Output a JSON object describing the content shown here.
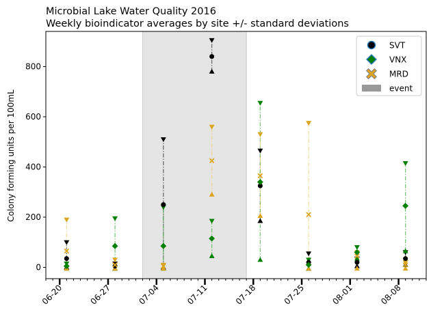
{
  "chart_data": {
    "type": "scatter",
    "title": "Microbial Lake Water Quality 2016",
    "subtitle": "Weekly bioindicator averages by site +/- standard deviations",
    "xlabel": "",
    "ylabel": "Colony forming units per 100mL",
    "xlim": [
      "2016-06-18",
      "2016-08-12"
    ],
    "ylim": [
      -45,
      940
    ],
    "x_ticks": [
      "06-20",
      "06-27",
      "07-04",
      "07-11",
      "07-18",
      "07-25",
      "08-01",
      "08-08"
    ],
    "x_tick_dates": [
      "2016-06-20",
      "2016-06-27",
      "2016-07-04",
      "2016-07-11",
      "2016-07-18",
      "2016-07-25",
      "2016-08-01",
      "2016-08-08"
    ],
    "y_ticks": [
      0,
      200,
      400,
      600,
      800
    ],
    "grid": false,
    "legend_position": "top-right",
    "event": {
      "name": "event",
      "start": "2016-07-02",
      "end": "2016-07-17",
      "color": "#999999"
    },
    "series": [
      {
        "name": "SVT",
        "marker": "circle",
        "color": "#000000",
        "edge": "#1f77b4",
        "line_color": "#4d4d4d",
        "points": [
          {
            "x": "2016-06-21",
            "mean": 35,
            "low": 0,
            "high": 100
          },
          {
            "x": "2016-06-28",
            "mean": 5,
            "low": -5,
            "high": 15
          },
          {
            "x": "2016-07-05",
            "mean": 250,
            "low": 0,
            "high": 510
          },
          {
            "x": "2016-07-12",
            "mean": 840,
            "low": 780,
            "high": 905
          },
          {
            "x": "2016-07-19",
            "mean": 325,
            "low": 185,
            "high": 465
          },
          {
            "x": "2016-07-26",
            "mean": 20,
            "low": -5,
            "high": 55
          },
          {
            "x": "2016-08-02",
            "mean": 20,
            "low": 5,
            "high": 35
          },
          {
            "x": "2016-08-09",
            "mean": 35,
            "low": 10,
            "high": 60
          }
        ]
      },
      {
        "name": "VNX",
        "marker": "diamond",
        "color": "#008000",
        "edge": "#1f77b4",
        "line_color": "#5cb85c",
        "points": [
          {
            "x": "2016-06-21",
            "mean": 5,
            "low": -5,
            "high": 15
          },
          {
            "x": "2016-06-28",
            "mean": 85,
            "low": -5,
            "high": 195
          },
          {
            "x": "2016-07-05",
            "mean": 85,
            "low": -5,
            "high": 240
          },
          {
            "x": "2016-07-12",
            "mean": 115,
            "low": 45,
            "high": 185
          },
          {
            "x": "2016-07-19",
            "mean": 340,
            "low": 30,
            "high": 655
          },
          {
            "x": "2016-07-26",
            "mean": 10,
            "low": -5,
            "high": 30
          },
          {
            "x": "2016-08-02",
            "mean": 60,
            "low": 35,
            "high": 80
          },
          {
            "x": "2016-08-09",
            "mean": 245,
            "low": 65,
            "high": 415
          }
        ]
      },
      {
        "name": "MRD",
        "marker": "x",
        "color": "#daa520",
        "edge": "#808080",
        "line_color": "#f0d58c",
        "points": [
          {
            "x": "2016-06-21",
            "mean": 65,
            "low": -5,
            "high": 190
          },
          {
            "x": "2016-06-28",
            "mean": 10,
            "low": -5,
            "high": 30
          },
          {
            "x": "2016-07-05",
            "mean": 5,
            "low": -5,
            "high": 10
          },
          {
            "x": "2016-07-12",
            "mean": 425,
            "low": 290,
            "high": 560
          },
          {
            "x": "2016-07-19",
            "mean": 365,
            "low": 205,
            "high": 530
          },
          {
            "x": "2016-07-26",
            "mean": 210,
            "low": -5,
            "high": 575
          },
          {
            "x": "2016-08-02",
            "mean": 45,
            "low": -5,
            "high": 60
          },
          {
            "x": "2016-08-09",
            "mean": 10,
            "low": -5,
            "high": 20
          }
        ]
      }
    ]
  }
}
